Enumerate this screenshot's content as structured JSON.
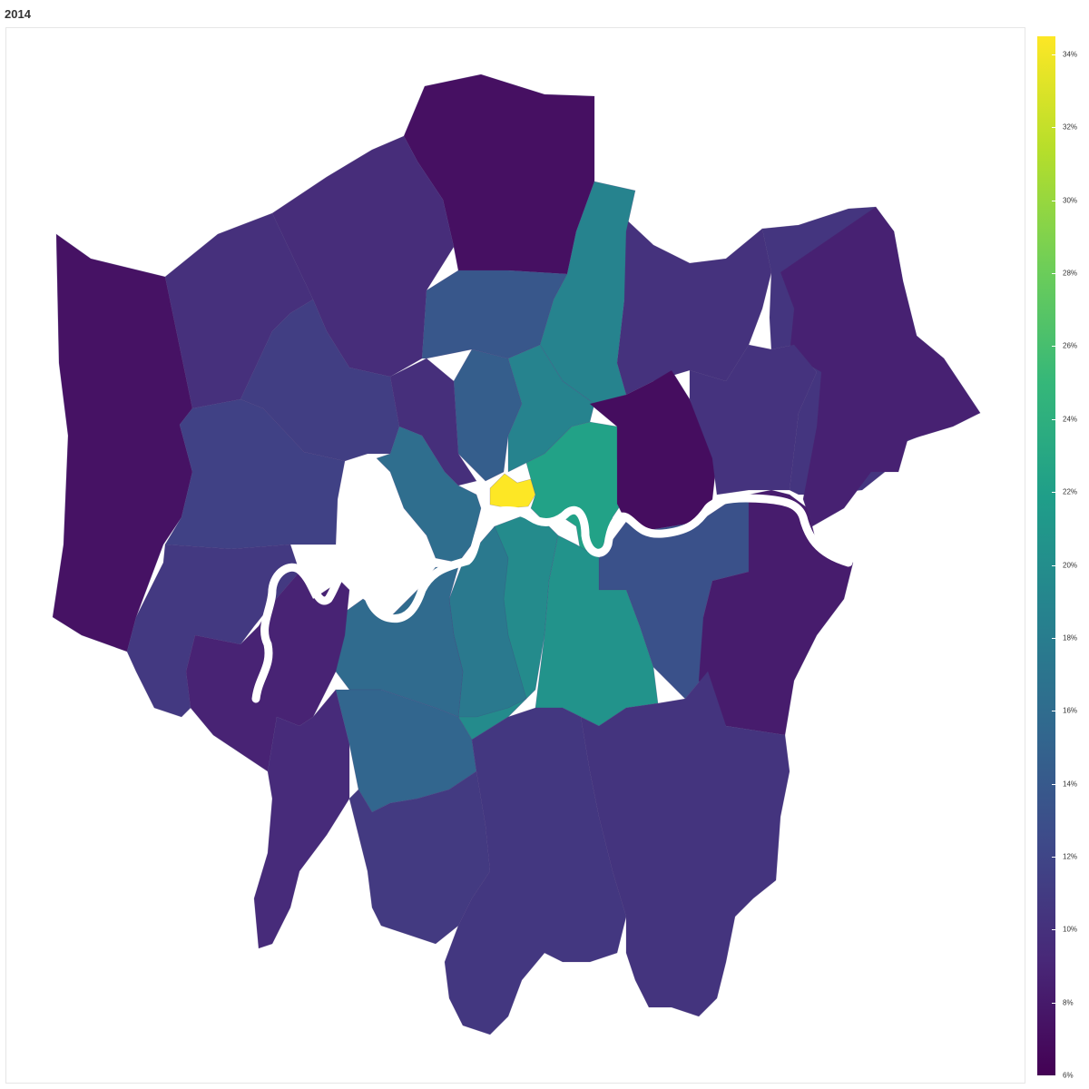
{
  "title": "2014",
  "colors": {
    "background": "#ffffff",
    "panel_border": "#e6e6e6",
    "river": "#ffffff",
    "scale_stops": [
      "#440154",
      "#482878",
      "#3e4989",
      "#31688e",
      "#26828e",
      "#1f9e89",
      "#35b779",
      "#6ece58",
      "#b5de2b",
      "#fde725"
    ]
  },
  "map_data": {
    "type": "choropleth",
    "region": "Greater London boroughs",
    "measure_unit": "%",
    "scale_range": [
      6,
      34.5
    ],
    "regions": [
      {
        "id": "enfield",
        "value": 7.2
      },
      {
        "id": "barnet",
        "value": 9.6
      },
      {
        "id": "harrow",
        "value": 9.9
      },
      {
        "id": "hillingdon",
        "value": 7.4
      },
      {
        "id": "brent",
        "value": 11.3
      },
      {
        "id": "ealing",
        "value": 11.6
      },
      {
        "id": "haringey",
        "value": 13.8
      },
      {
        "id": "waltham-forest",
        "value": 10.1
      },
      {
        "id": "redbridge",
        "value": 10.4
      },
      {
        "id": "havering",
        "value": 8.6
      },
      {
        "id": "hackney",
        "value": 18.8
      },
      {
        "id": "islington",
        "value": 14.5
      },
      {
        "id": "camden",
        "value": 9.8
      },
      {
        "id": "westminster",
        "value": 16.2
      },
      {
        "id": "kensington-chelsea",
        "value": 16.6
      },
      {
        "id": "hammersmith-fulham",
        "value": 15.8
      },
      {
        "id": "city-of-london",
        "value": 34.5
      },
      {
        "id": "tower-hamlets",
        "value": 22.3
      },
      {
        "id": "newham",
        "value": 7.0
      },
      {
        "id": "barking-dagenham",
        "value": 10.2
      },
      {
        "id": "greenwich",
        "value": 13.2
      },
      {
        "id": "bexley",
        "value": 8.2
      },
      {
        "id": "southwark",
        "value": 19.7
      },
      {
        "id": "lambeth",
        "value": 17.6
      },
      {
        "id": "lewisham",
        "value": 20.6
      },
      {
        "id": "wandsworth",
        "value": 15.9
      },
      {
        "id": "hounslow",
        "value": 10.8
      },
      {
        "id": "richmond",
        "value": 8.8
      },
      {
        "id": "kingston",
        "value": 9.5
      },
      {
        "id": "merton",
        "value": 15.3
      },
      {
        "id": "sutton",
        "value": 10.9
      },
      {
        "id": "croydon",
        "value": 10.6
      },
      {
        "id": "bromley",
        "value": 10.3
      }
    ]
  },
  "legend": {
    "ticks": [
      {
        "label": "6%",
        "value": 6
      },
      {
        "label": "8%",
        "value": 8
      },
      {
        "label": "10%",
        "value": 10
      },
      {
        "label": "12%",
        "value": 12
      },
      {
        "label": "14%",
        "value": 14
      },
      {
        "label": "16%",
        "value": 16
      },
      {
        "label": "18%",
        "value": 18
      },
      {
        "label": "20%",
        "value": 20
      },
      {
        "label": "22%",
        "value": 22
      },
      {
        "label": "24%",
        "value": 24
      },
      {
        "label": "26%",
        "value": 26
      },
      {
        "label": "28%",
        "value": 28
      },
      {
        "label": "30%",
        "value": 30
      },
      {
        "label": "32%",
        "value": 32
      },
      {
        "label": "34%",
        "value": 34
      }
    ]
  }
}
